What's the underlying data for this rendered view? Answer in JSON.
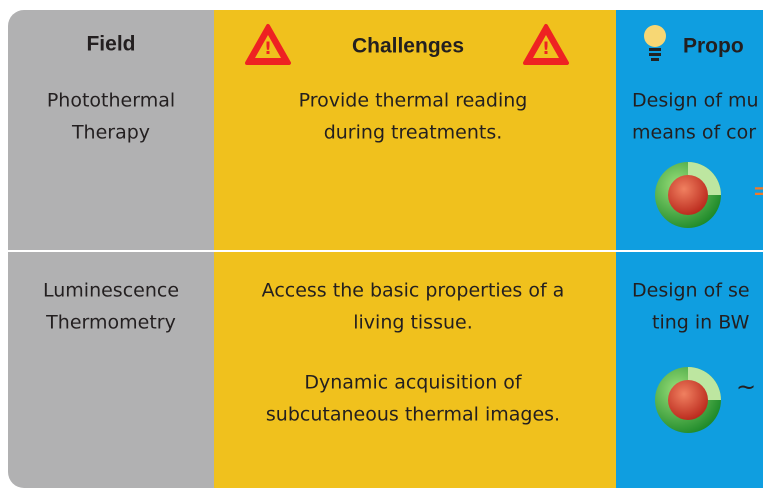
{
  "header": {
    "field": "Field",
    "challenges": "Challenges",
    "proposal": "Propo"
  },
  "rows": [
    {
      "field": [
        "Photothermal",
        "Therapy"
      ],
      "challenges": [
        [
          "Provide thermal reading",
          "during treatments."
        ]
      ],
      "proposal": [
        "Design of mu",
        "means of cor"
      ]
    },
    {
      "field": [
        "Luminescence",
        "Thermometry"
      ],
      "challenges": [
        [
          "Access the basic properties of a",
          "living tissue."
        ],
        [
          "Dynamic acquisition of",
          "subcutaneous thermal images."
        ]
      ],
      "proposal": [
        "Design of se",
        "ting in BW"
      ]
    }
  ]
}
